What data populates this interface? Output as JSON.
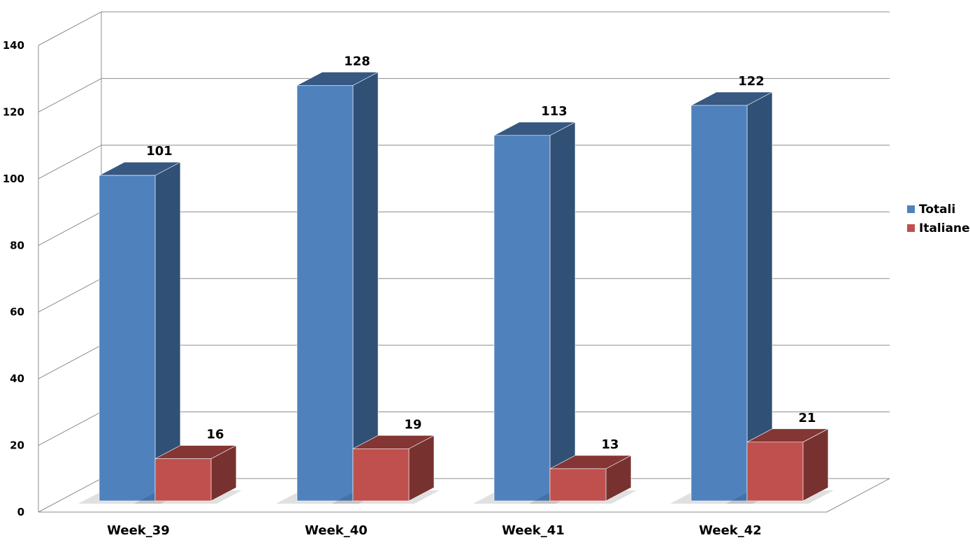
{
  "chart_data": {
    "type": "bar",
    "title": "",
    "xlabel": "",
    "ylabel": "",
    "categories": [
      "Week_39",
      "Week_40",
      "Week_41",
      "Week_42"
    ],
    "series": [
      {
        "name": "Totali",
        "values": [
          101,
          128,
          113,
          122
        ],
        "color": "#4F81BD"
      },
      {
        "name": "Italiane",
        "values": [
          16,
          19,
          13,
          21
        ],
        "color": "#C0504D"
      }
    ],
    "ylim": [
      0,
      140
    ],
    "yticks": [
      0,
      20,
      40,
      60,
      80,
      100,
      120,
      140
    ],
    "grid": true,
    "legend": "right",
    "three_d": true
  }
}
